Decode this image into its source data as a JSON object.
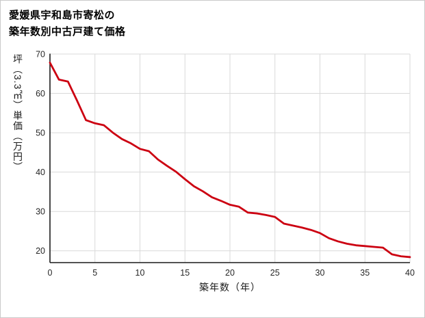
{
  "title": {
    "line1": "愛媛県宇和島市寄松の",
    "line2": "築年数別中古戸建て価格"
  },
  "chart_data": {
    "type": "line",
    "title": "愛媛県宇和島市寄松の築年数別中古戸建て価格",
    "xlabel": "築年数（年）",
    "ylabel": "坪（3.3㎡）単価（万円）",
    "xlim": [
      0,
      40
    ],
    "ylim": [
      17,
      70
    ],
    "xticks": [
      0,
      5,
      10,
      15,
      20,
      25,
      30,
      35,
      40
    ],
    "yticks": [
      20,
      30,
      40,
      50,
      60,
      70
    ],
    "grid": true,
    "legend": "none",
    "line_color": "#cc0011",
    "grid_color": "#d9d9d9",
    "axis_color": "#1a1a1a",
    "x": [
      0,
      1,
      2,
      3,
      4,
      5,
      6,
      7,
      8,
      9,
      10,
      11,
      12,
      13,
      14,
      15,
      16,
      17,
      18,
      19,
      20,
      21,
      22,
      23,
      24,
      25,
      26,
      27,
      28,
      29,
      30,
      31,
      32,
      33,
      34,
      35,
      36,
      37,
      38,
      39,
      40
    ],
    "y": [
      67.8,
      63.5,
      63.0,
      58.2,
      53.2,
      52.4,
      51.9,
      50.0,
      48.4,
      47.3,
      45.9,
      45.3,
      43.2,
      41.6,
      40.1,
      38.2,
      36.4,
      35.1,
      33.6,
      32.7,
      31.7,
      31.2,
      29.7,
      29.5,
      29.1,
      28.6,
      26.9,
      26.4,
      25.9,
      25.3,
      24.5,
      23.2,
      22.4,
      21.8,
      21.4,
      21.2,
      21.0,
      20.8,
      19.1,
      18.6,
      18.4
    ]
  }
}
